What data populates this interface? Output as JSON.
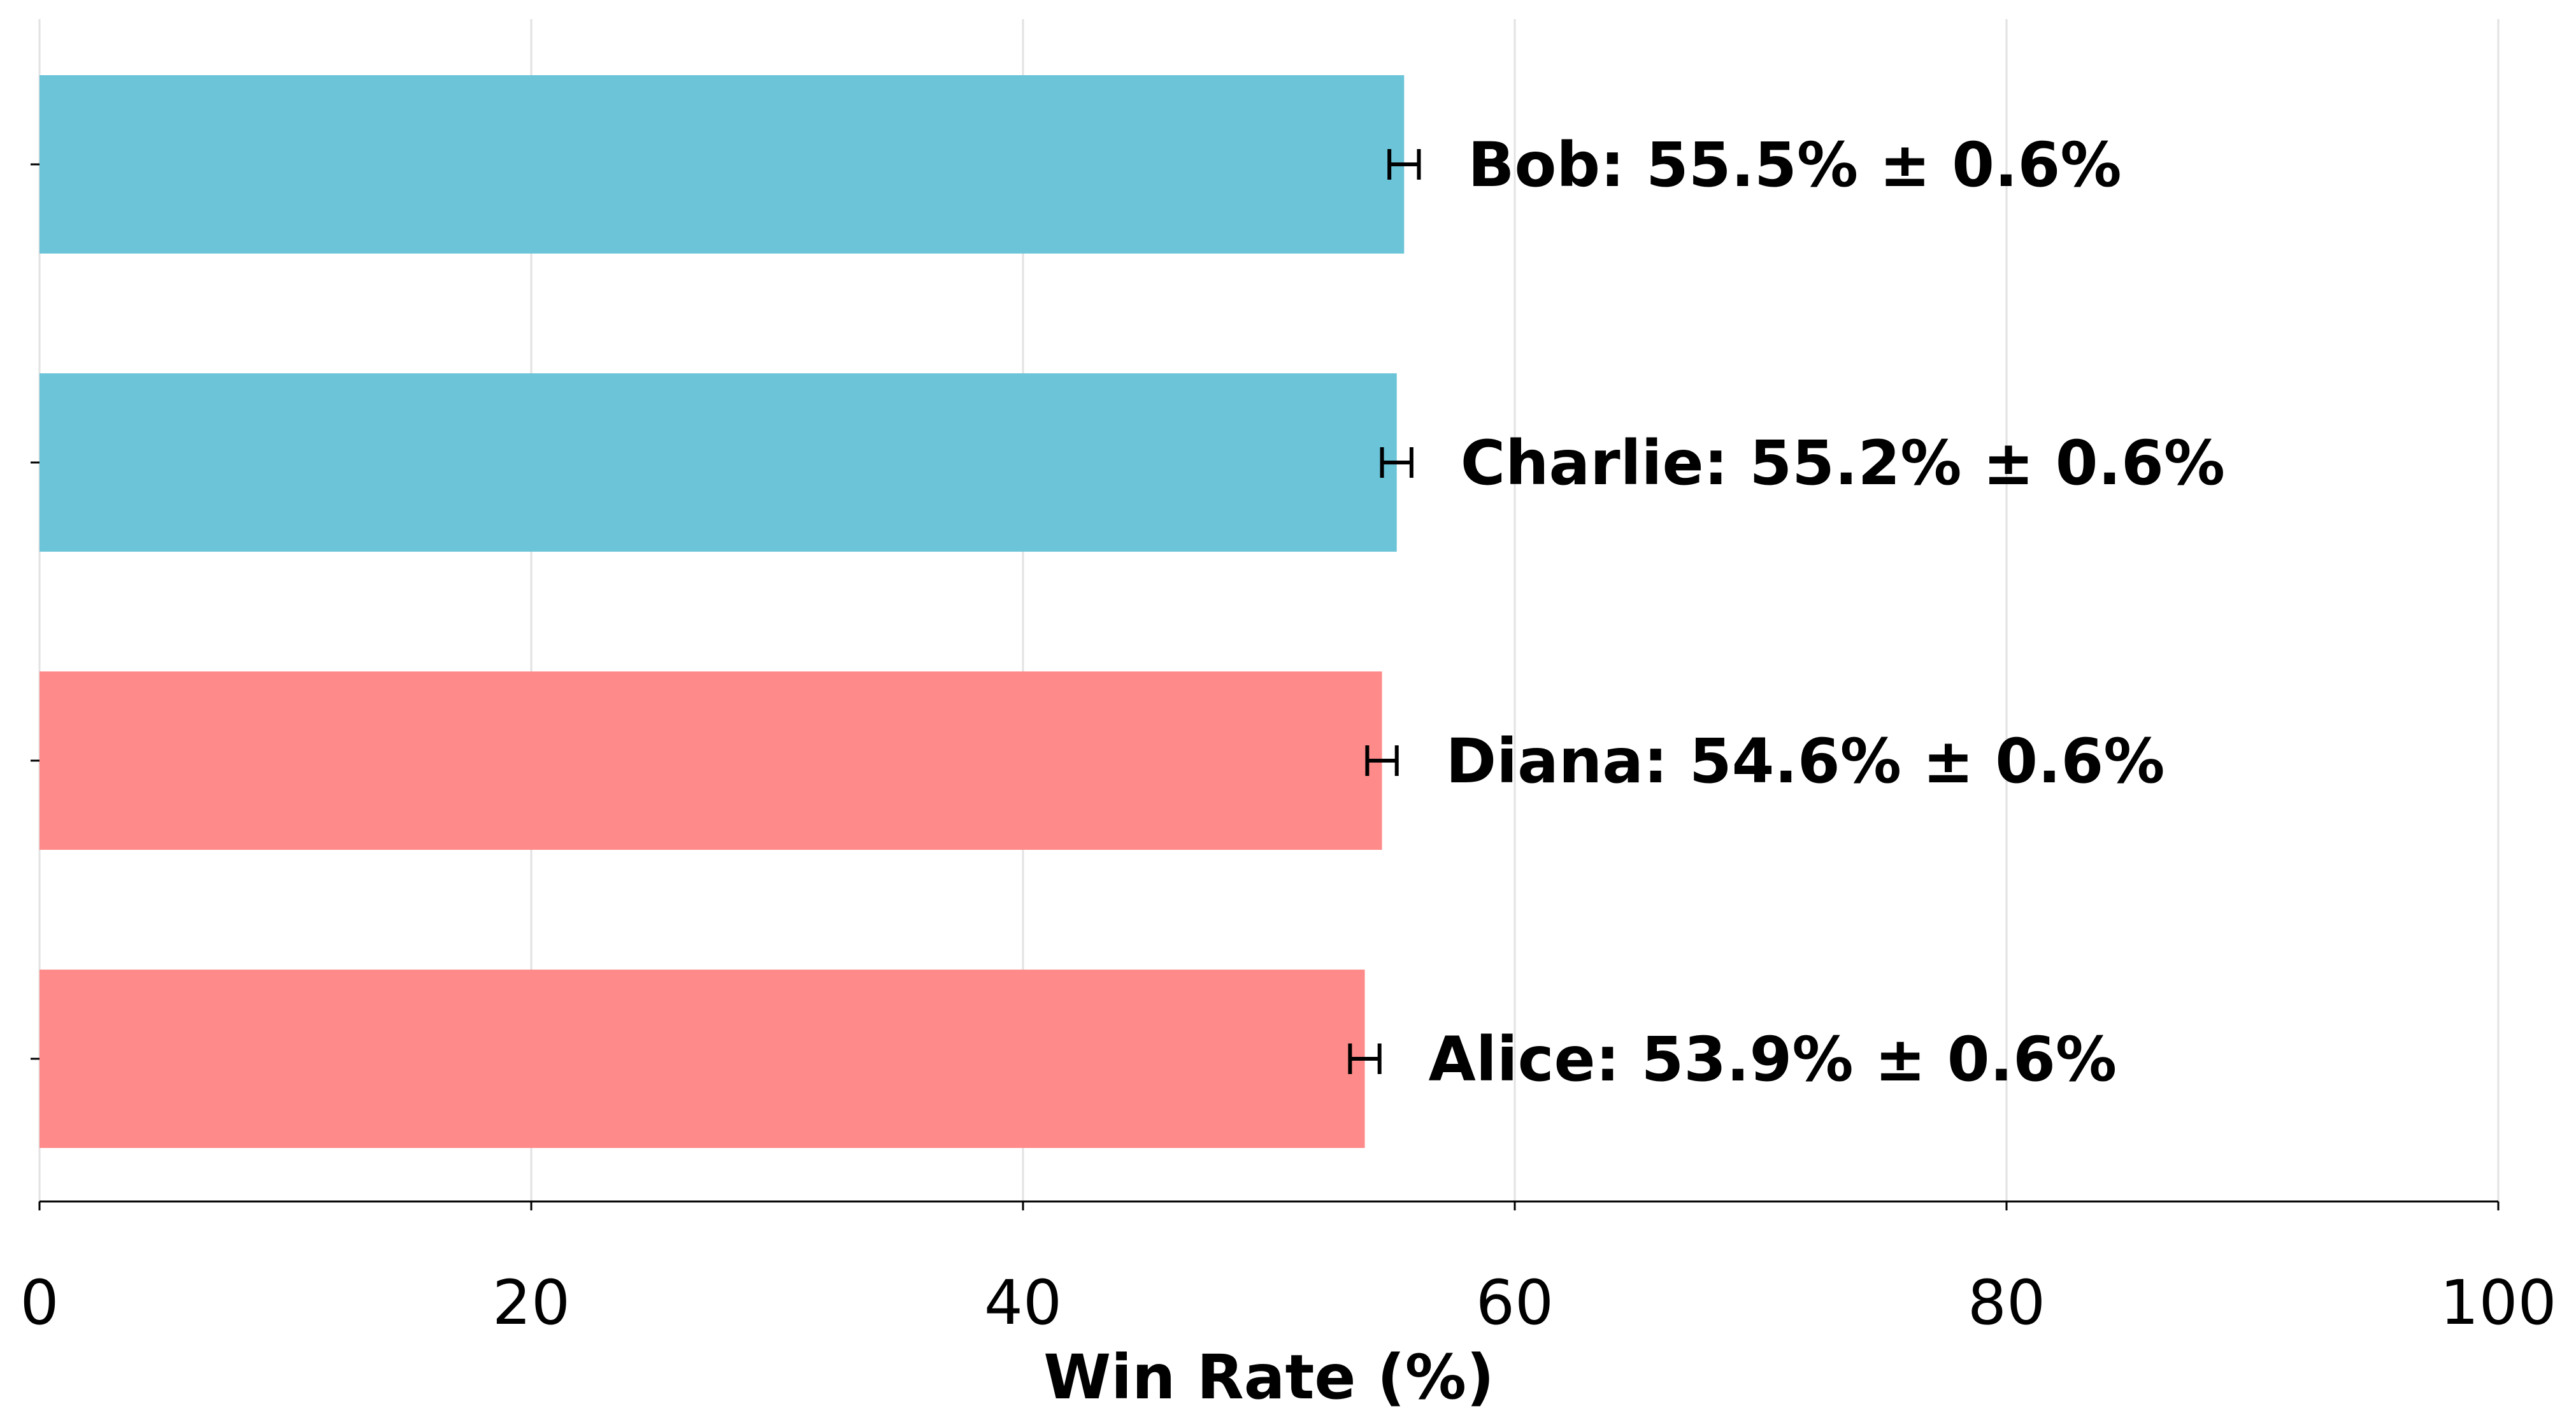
{
  "chart_data": {
    "type": "bar",
    "orientation": "horizontal",
    "title": "",
    "xlabel": "Win Rate (%)",
    "ylabel": "",
    "xlim": [
      0,
      100
    ],
    "xticks": [
      0,
      20,
      40,
      60,
      80,
      100
    ],
    "grid": "vertical",
    "legend": "none",
    "bars": [
      {
        "name": "Bob",
        "value": 55.5,
        "error": 0.6,
        "label": "Bob: 55.5% ± 0.6%",
        "color": "#6BC4D8"
      },
      {
        "name": "Charlie",
        "value": 55.2,
        "error": 0.6,
        "label": "Charlie: 55.2% ± 0.6%",
        "color": "#6BC4D8"
      },
      {
        "name": "Diana",
        "value": 54.6,
        "error": 0.6,
        "label": "Diana: 54.6% ± 0.6%",
        "color": "#FF8A8A"
      },
      {
        "name": "Alice",
        "value": 53.9,
        "error": 0.6,
        "label": "Alice: 53.9% ± 0.6%",
        "color": "#FF8A8A"
      }
    ]
  }
}
